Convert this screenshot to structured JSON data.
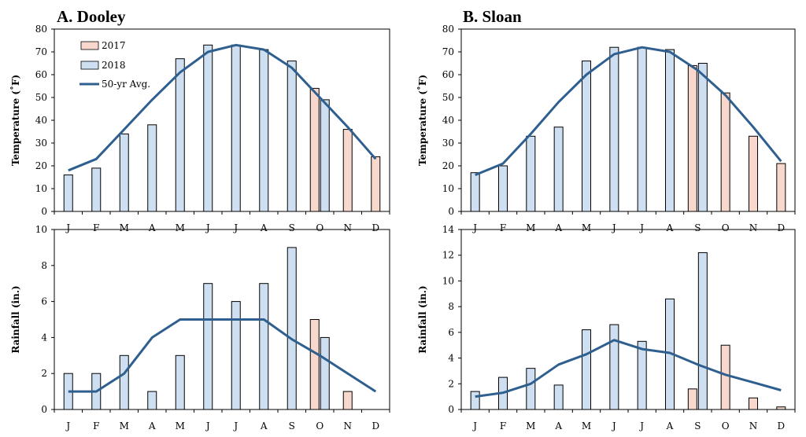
{
  "colors": {
    "y2017": "#f8d8cc",
    "y2018": "#cddff0",
    "avg": "#2e5f8f",
    "bar_edge": "#000000"
  },
  "chart_data": [
    {
      "id": "dooley-temp",
      "type": "bar",
      "title": "A. Dooley",
      "ylabel": "Temperature (˚F)",
      "ylim": [
        0,
        80
      ],
      "yticks": [
        0,
        10,
        20,
        30,
        40,
        50,
        60,
        70,
        80
      ],
      "categories": [
        "J",
        "F",
        "M",
        "A",
        "M",
        "J",
        "J",
        "A",
        "S",
        "O",
        "N",
        "D"
      ],
      "legend": [
        "2017",
        "2018",
        "50-yr Avg."
      ],
      "series": [
        {
          "name": "2017",
          "values": [
            null,
            null,
            null,
            null,
            null,
            null,
            null,
            null,
            null,
            54,
            36,
            24
          ]
        },
        {
          "name": "2018",
          "values": [
            16,
            19,
            34,
            38,
            67,
            73,
            73,
            71,
            66,
            49,
            null,
            null
          ]
        },
        {
          "name": "50-yr Avg.",
          "type": "line",
          "values": [
            18,
            23,
            36,
            49,
            61,
            70,
            73,
            71,
            63,
            50,
            37,
            23
          ]
        }
      ]
    },
    {
      "id": "sloan-temp",
      "type": "bar",
      "title": "B. Sloan",
      "ylabel": "Temperature (˚F)",
      "ylim": [
        0,
        80
      ],
      "yticks": [
        0,
        10,
        20,
        30,
        40,
        50,
        60,
        70,
        80
      ],
      "categories": [
        "J",
        "F",
        "M",
        "A",
        "M",
        "J",
        "J",
        "A",
        "S",
        "O",
        "N",
        "D"
      ],
      "series": [
        {
          "name": "2017",
          "values": [
            null,
            null,
            null,
            null,
            null,
            null,
            null,
            null,
            64,
            52,
            33,
            21
          ]
        },
        {
          "name": "2018",
          "values": [
            17,
            20,
            33,
            37,
            66,
            72,
            72,
            71,
            65,
            null,
            null,
            null
          ]
        },
        {
          "name": "50-yr Avg.",
          "type": "line",
          "values": [
            16,
            21,
            34,
            48,
            60,
            69,
            72,
            70,
            62,
            51,
            37,
            22
          ]
        }
      ]
    },
    {
      "id": "dooley-rain",
      "type": "bar",
      "ylabel": "Rainfall (in.)",
      "ylim": [
        0,
        10
      ],
      "yticks": [
        0,
        2,
        4,
        6,
        8,
        10
      ],
      "categories": [
        "J",
        "F",
        "M",
        "A",
        "M",
        "J",
        "J",
        "A",
        "S",
        "O",
        "N",
        "D"
      ],
      "series": [
        {
          "name": "2017",
          "values": [
            null,
            null,
            null,
            null,
            null,
            null,
            null,
            null,
            null,
            5,
            1,
            null
          ]
        },
        {
          "name": "2018",
          "values": [
            2,
            2,
            3,
            1,
            3,
            7,
            6,
            7,
            9,
            4,
            null,
            null
          ]
        },
        {
          "name": "50-yr Avg.",
          "type": "line",
          "values": [
            1,
            1,
            2,
            4,
            5,
            5,
            5,
            5,
            3.9,
            3,
            2,
            1
          ]
        }
      ]
    },
    {
      "id": "sloan-rain",
      "type": "bar",
      "ylabel": "Rainfall (in.)",
      "ylim": [
        0,
        14
      ],
      "yticks": [
        0,
        2,
        4,
        6,
        8,
        10,
        12,
        14
      ],
      "categories": [
        "J",
        "F",
        "M",
        "A",
        "M",
        "J",
        "J",
        "A",
        "S",
        "O",
        "N",
        "D"
      ],
      "series": [
        {
          "name": "2017",
          "values": [
            null,
            null,
            null,
            null,
            null,
            null,
            null,
            null,
            1.6,
            5,
            0.9,
            0.2
          ]
        },
        {
          "name": "2018",
          "values": [
            1.4,
            2.5,
            3.2,
            1.9,
            6.2,
            6.6,
            5.3,
            8.6,
            12.2,
            null,
            null,
            null
          ]
        },
        {
          "name": "50-yr Avg.",
          "type": "line",
          "values": [
            1,
            1.3,
            2,
            3.5,
            4.3,
            5.4,
            4.7,
            4.4,
            3.5,
            2.7,
            2.1,
            1.5
          ]
        }
      ]
    }
  ]
}
